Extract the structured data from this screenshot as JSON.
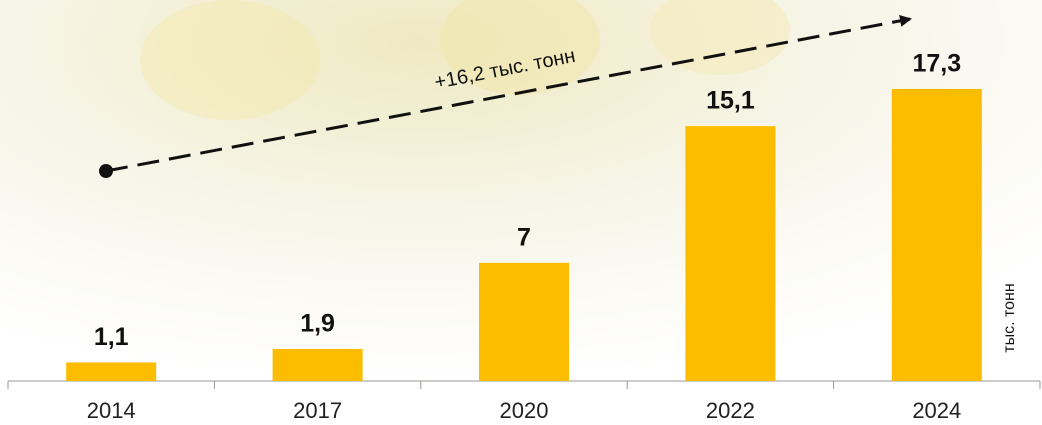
{
  "chart_data": {
    "type": "bar",
    "categories": [
      "2014",
      "2017",
      "2020",
      "2022",
      "2024"
    ],
    "values": [
      1.1,
      1.9,
      7,
      15.1,
      17.3
    ],
    "value_labels": [
      "1,1",
      "1,9",
      "7",
      "15,1",
      "17,3"
    ],
    "color": "#fcbd00",
    "annotation": "+16,2 тыс. тонн",
    "y_label": "тыс. тонн"
  }
}
